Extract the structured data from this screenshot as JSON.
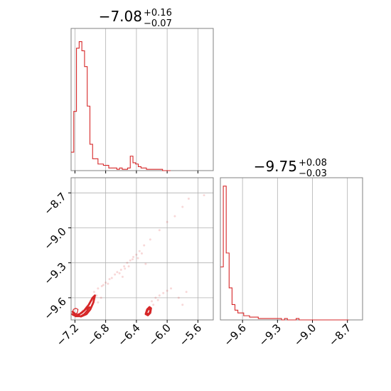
{
  "chart_data": [
    {
      "type": "histogram",
      "panel": "top-left",
      "title": {
        "median": "−7.08",
        "plus": "+0.16",
        "minus": "−0.07"
      },
      "xlim": [
        -7.25,
        -5.4
      ],
      "ylim": [
        0,
        1.08
      ],
      "grid": true,
      "color": "#d62728",
      "x_ticks": [
        -7.2,
        -6.8,
        -6.4,
        -6.0,
        -5.6
      ],
      "bin_edges": [
        -7.25,
        -7.215,
        -7.18,
        -7.145,
        -7.11,
        -7.075,
        -7.04,
        -7.005,
        -6.97,
        -6.935,
        -6.9,
        -6.865,
        -6.83,
        -6.795,
        -6.76,
        -6.725,
        -6.69,
        -6.655,
        -6.62,
        -6.585,
        -6.55,
        -6.515,
        -6.48,
        -6.445,
        -6.41,
        -6.375,
        -6.34,
        -6.305,
        -6.27,
        -6.235,
        -6.2,
        -6.165,
        -6.13,
        -6.095,
        -6.06,
        -6.025,
        -5.99,
        -5.955
      ],
      "counts": [
        0.14,
        0.45,
        0.93,
        0.98,
        0.91,
        0.79,
        0.49,
        0.2,
        0.09,
        0.09,
        0.05,
        0.05,
        0.04,
        0.04,
        0.02,
        0.02,
        0.02,
        0.01,
        0.02,
        0.01,
        0.01,
        0.02,
        0.11,
        0.06,
        0.05,
        0.03,
        0.02,
        0.02,
        0.01,
        0.01,
        0.01,
        0.01,
        0.01,
        0.01,
        0.0,
        0.0,
        0.0
      ]
    },
    {
      "type": "histogram",
      "panel": "bottom-right",
      "title": {
        "median": "−9.75",
        "plus": "+0.08",
        "minus": "−0.03"
      },
      "xlim": [
        -9.79,
        -8.57
      ],
      "ylim": [
        0,
        1.02
      ],
      "grid": true,
      "color": "#d62728",
      "x_ticks": [
        -9.6,
        -9.3,
        -9.0,
        -8.7
      ],
      "bin_edges": [
        -9.79,
        -9.765,
        -9.74,
        -9.715,
        -9.69,
        -9.665,
        -9.64,
        -9.615,
        -9.59,
        -9.565,
        -9.54,
        -9.515,
        -9.49,
        -9.465,
        -9.44,
        -9.415,
        -9.39,
        -9.365,
        -9.34,
        -9.315,
        -9.29,
        -9.265,
        -9.24,
        -9.215,
        -9.19,
        -9.165,
        -9.14,
        -9.115,
        -9.09,
        -9.065,
        -9.04,
        -9.015,
        -8.99,
        -8.965,
        -8.94,
        -8.915,
        -8.89,
        -8.865,
        -8.84,
        -8.815,
        -8.79,
        -8.765,
        -8.74,
        -8.715,
        -8.69
      ],
      "counts": [
        0.38,
        0.96,
        0.48,
        0.23,
        0.11,
        0.07,
        0.05,
        0.05,
        0.03,
        0.03,
        0.02,
        0.02,
        0.02,
        0.01,
        0.01,
        0.01,
        0.01,
        0.01,
        0.01,
        0.01,
        0.01,
        0.0,
        0.01,
        0.0,
        0.0,
        0.0,
        0.01,
        0.0,
        0.0,
        0.0,
        0.0,
        0.0,
        0.0,
        0.0,
        0.0,
        0.0,
        0.0,
        0.0,
        0.0,
        0.0,
        0.0,
        0.0,
        0.0,
        0.0
      ]
    },
    {
      "type": "scatter",
      "panel": "bottom-left",
      "title": "",
      "xlim": [
        -7.25,
        -5.4
      ],
      "ylim": [
        -9.79,
        -8.57
      ],
      "grid": true,
      "color": "#d62728",
      "x_ticks": [
        -7.2,
        -6.8,
        -6.4,
        -6.0,
        -5.6
      ],
      "y_ticks": [
        -8.7,
        -9.0,
        -9.3,
        -9.6
      ],
      "contours": [
        {
          "level": "high",
          "x": [
            -7.23,
            -7.18,
            -7.12,
            -7.05,
            -7.0,
            -6.96,
            -6.94,
            -6.97,
            -7.02,
            -7.08,
            -7.14,
            -7.19,
            -7.23
          ],
          "y": [
            -9.72,
            -9.75,
            -9.76,
            -9.74,
            -9.7,
            -9.64,
            -9.58,
            -9.6,
            -9.66,
            -9.71,
            -9.74,
            -9.75,
            -9.72
          ]
        },
        {
          "level": "mid",
          "x": [
            -7.24,
            -7.19,
            -7.13,
            -7.08,
            -7.04,
            -7.01,
            -7.06,
            -7.11,
            -7.17,
            -7.22,
            -7.24
          ],
          "y": [
            -9.74,
            -9.76,
            -9.76,
            -9.74,
            -9.71,
            -9.68,
            -9.7,
            -9.73,
            -9.75,
            -9.75,
            -9.74
          ]
        },
        {
          "level": "low",
          "x": [
            -7.23,
            -7.2,
            -7.17,
            -7.16,
            -7.19,
            -7.22,
            -7.23
          ],
          "y": [
            -9.73,
            -9.74,
            -9.73,
            -9.7,
            -9.69,
            -9.7,
            -9.73
          ]
        },
        {
          "level": "high",
          "x": [
            -6.28,
            -6.25,
            -6.22,
            -6.21,
            -6.23,
            -6.26,
            -6.28
          ],
          "y": [
            -9.74,
            -9.75,
            -9.73,
            -9.69,
            -9.68,
            -9.7,
            -9.74
          ]
        },
        {
          "level": "mid",
          "x": [
            -6.27,
            -6.24,
            -6.22,
            -6.24,
            -6.27
          ],
          "y": [
            -9.73,
            -9.74,
            -9.71,
            -9.69,
            -9.73
          ]
        }
      ],
      "points": [
        [
          -6.95,
          -9.55
        ],
        [
          -6.9,
          -9.52
        ],
        [
          -6.85,
          -9.5
        ],
        [
          -6.8,
          -9.47
        ],
        [
          -6.75,
          -9.44
        ],
        [
          -6.72,
          -9.43
        ],
        [
          -6.68,
          -9.4
        ],
        [
          -6.65,
          -9.38
        ],
        [
          -6.6,
          -9.36
        ],
        [
          -6.56,
          -9.33
        ],
        [
          -6.52,
          -9.3
        ],
        [
          -6.48,
          -9.28
        ],
        [
          -6.44,
          -9.25
        ],
        [
          -6.4,
          -9.23
        ],
        [
          -6.36,
          -9.2
        ],
        [
          -6.3,
          -9.15
        ],
        [
          -6.22,
          -9.1
        ],
        [
          -6.1,
          -9.02
        ],
        [
          -6.0,
          -8.95
        ],
        [
          -5.9,
          -8.9
        ],
        [
          -5.8,
          -8.82
        ],
        [
          -5.72,
          -8.75
        ],
        [
          -5.52,
          -8.72
        ],
        [
          -6.92,
          -9.58
        ],
        [
          -6.83,
          -9.49
        ],
        [
          -6.77,
          -9.48
        ],
        [
          -6.62,
          -9.39
        ],
        [
          -6.55,
          -9.35
        ],
        [
          -6.45,
          -9.27
        ],
        [
          -6.38,
          -9.26
        ],
        [
          -6.33,
          -9.22
        ],
        [
          -6.28,
          -9.31
        ],
        [
          -6.58,
          -9.42
        ],
        [
          -6.5,
          -9.33
        ],
        [
          -6.2,
          -9.63
        ],
        [
          -6.15,
          -9.6
        ],
        [
          -6.1,
          -9.58
        ],
        [
          -6.05,
          -9.56
        ],
        [
          -6.0,
          -9.54
        ],
        [
          -5.95,
          -9.52
        ],
        [
          -6.18,
          -9.66
        ],
        [
          -6.12,
          -9.62
        ],
        [
          -5.85,
          -9.6
        ],
        [
          -5.75,
          -9.55
        ],
        [
          -5.8,
          -9.66
        ],
        [
          -6.98,
          -9.62
        ],
        [
          -7.05,
          -9.68
        ],
        [
          -6.9,
          -9.64
        ],
        [
          -6.86,
          -9.6
        ],
        [
          -7.1,
          -9.71
        ]
      ]
    }
  ]
}
